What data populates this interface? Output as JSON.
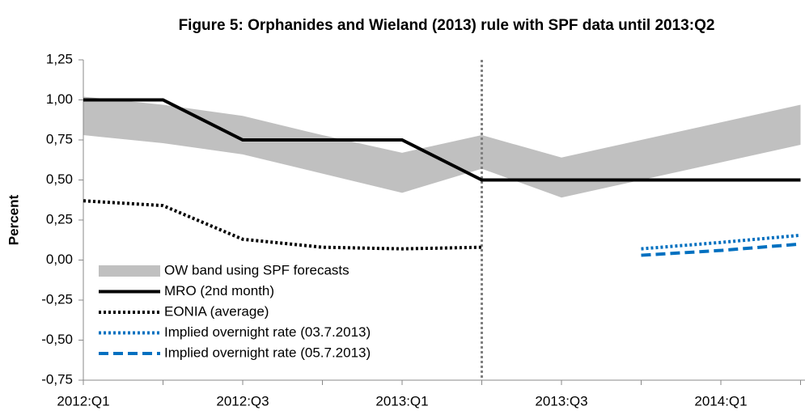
{
  "chart_data": {
    "type": "line",
    "title": "Figure 5: Orphanides and Wieland (2013) rule with SPF data until 2013:Q2",
    "y_label": "Percent",
    "categories": [
      "2012:Q1",
      null,
      "2012:Q3",
      null,
      "2013:Q1",
      null,
      "2013:Q3",
      null,
      "2014:Q1",
      null
    ],
    "vline_at": 5,
    "ylim": [
      -0.75,
      1.25
    ],
    "yticks": [
      {
        "value": -0.75,
        "label": "-0,75"
      },
      {
        "value": -0.5,
        "label": "-0,50"
      },
      {
        "value": -0.25,
        "label": "-0,25"
      },
      {
        "value": 0,
        "label": "0,00"
      },
      {
        "value": 0.25,
        "label": "0,25"
      },
      {
        "value": 0.5,
        "label": "0,50"
      },
      {
        "value": 0.75,
        "label": "0,75"
      },
      {
        "value": 1,
        "label": "1,00"
      },
      {
        "value": 1.25,
        "label": "1,25"
      }
    ],
    "band": {
      "name": "OW band using SPF forecasts",
      "color": "#c0c0c0",
      "upper": [
        1.02,
        0.97,
        0.9,
        0.78,
        0.67,
        0.78,
        0.64,
        0.75,
        0.86,
        0.97
      ],
      "lower": [
        0.78,
        0.73,
        0.66,
        0.54,
        0.42,
        0.57,
        0.39,
        0.5,
        0.61,
        0.72
      ]
    },
    "series": [
      {
        "name": "MRO (2nd month)",
        "color": "#000000",
        "style": "solid",
        "values": [
          1,
          1,
          0.75,
          0.75,
          0.75,
          0.5,
          0.5,
          0.5,
          0.5,
          0.5
        ]
      },
      {
        "name": "EONIA (average)",
        "color": "#000000",
        "style": "dot",
        "values": [
          0.37,
          0.34,
          0.13,
          0.08,
          0.07,
          0.08,
          null,
          null,
          null,
          null
        ]
      },
      {
        "name": "Implied overnight rate (03.7.2013)",
        "color": "#0070c0",
        "style": "dot",
        "values": [
          null,
          null,
          null,
          null,
          null,
          null,
          null,
          0.07,
          0.11,
          0.155
        ]
      },
      {
        "name": "Implied overnight rate (05.7.2013)",
        "color": "#0070c0",
        "style": "dash",
        "values": [
          null,
          null,
          null,
          null,
          null,
          null,
          null,
          0.03,
          0.06,
          0.1
        ]
      }
    ]
  }
}
